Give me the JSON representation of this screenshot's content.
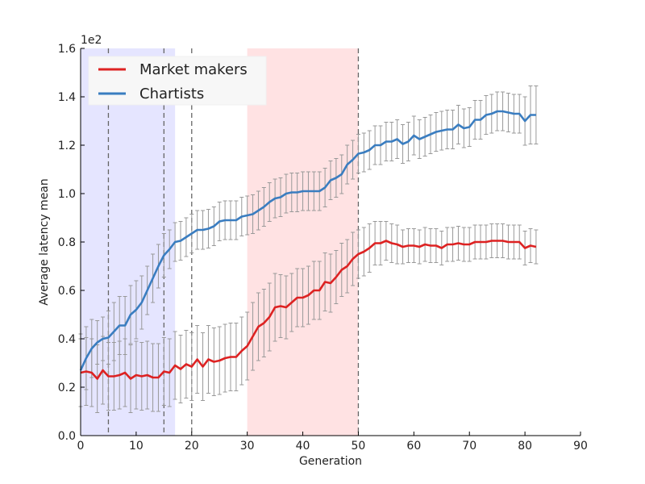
{
  "chart_data": {
    "type": "line",
    "title": "",
    "xlabel": "Generation",
    "ylabel": "Average latency mean",
    "y_scale_label": "1e2",
    "xlim": [
      0,
      90
    ],
    "ylim": [
      0.0,
      1.6
    ],
    "xticks": [
      0,
      10,
      20,
      30,
      40,
      50,
      60,
      70,
      80,
      90
    ],
    "xtick_labels": [
      "0",
      "10",
      "20",
      "30",
      "40",
      "50",
      "60",
      "70",
      "80",
      "90"
    ],
    "yticks": [
      0.0,
      0.2,
      0.4,
      0.6,
      0.8,
      1.0,
      1.2,
      1.4,
      1.6
    ],
    "ytick_labels": [
      "0.0",
      "0.2",
      "0.4",
      "0.6",
      "0.8",
      "1.0",
      "1.2",
      "1.4",
      "1.6"
    ],
    "grid": false,
    "legend_position": "top-left",
    "shaded_regions": [
      {
        "x0": 0,
        "x1": 17,
        "color": "#e5e5ff"
      },
      {
        "x0": 30,
        "x1": 50,
        "color": "#ffe2e3"
      }
    ],
    "vlines": [
      5,
      15,
      20,
      50
    ],
    "errorbar_color": "#999999",
    "series": [
      {
        "name": "Market makers",
        "color": "#dd2222",
        "x_start": 0,
        "values": [
          0.26,
          0.265,
          0.26,
          0.235,
          0.27,
          0.245,
          0.245,
          0.25,
          0.26,
          0.235,
          0.25,
          0.245,
          0.25,
          0.24,
          0.24,
          0.265,
          0.26,
          0.29,
          0.275,
          0.295,
          0.285,
          0.315,
          0.285,
          0.315,
          0.305,
          0.31,
          0.32,
          0.325,
          0.325,
          0.35,
          0.37,
          0.41,
          0.45,
          0.465,
          0.49,
          0.53,
          0.535,
          0.53,
          0.55,
          0.57,
          0.57,
          0.58,
          0.6,
          0.6,
          0.635,
          0.63,
          0.655,
          0.685,
          0.7,
          0.73,
          0.75,
          0.76,
          0.775,
          0.795,
          0.795,
          0.805,
          0.795,
          0.79,
          0.78,
          0.785,
          0.785,
          0.78,
          0.79,
          0.785,
          0.785,
          0.775,
          0.79,
          0.79,
          0.795,
          0.79,
          0.79,
          0.8,
          0.8,
          0.8,
          0.805,
          0.805,
          0.805,
          0.8,
          0.8,
          0.8,
          0.775,
          0.785,
          0.78
        ],
        "errors": [
          0.14,
          0.14,
          0.14,
          0.14,
          0.14,
          0.14,
          0.14,
          0.14,
          0.14,
          0.14,
          0.14,
          0.14,
          0.14,
          0.14,
          0.14,
          0.14,
          0.14,
          0.14,
          0.14,
          0.14,
          0.14,
          0.14,
          0.14,
          0.14,
          0.14,
          0.14,
          0.14,
          0.14,
          0.14,
          0.14,
          0.14,
          0.14,
          0.14,
          0.14,
          0.14,
          0.14,
          0.13,
          0.13,
          0.12,
          0.12,
          0.12,
          0.12,
          0.12,
          0.12,
          0.12,
          0.12,
          0.11,
          0.11,
          0.11,
          0.11,
          0.1,
          0.1,
          0.1,
          0.09,
          0.09,
          0.08,
          0.08,
          0.08,
          0.07,
          0.07,
          0.07,
          0.07,
          0.07,
          0.07,
          0.07,
          0.07,
          0.07,
          0.07,
          0.07,
          0.07,
          0.07,
          0.07,
          0.07,
          0.07,
          0.07,
          0.07,
          0.07,
          0.07,
          0.07,
          0.07,
          0.07,
          0.07,
          0.07
        ]
      },
      {
        "name": "Chartists",
        "color": "#3a7dc0",
        "x_start": 0,
        "values": [
          0.27,
          0.32,
          0.36,
          0.385,
          0.4,
          0.405,
          0.43,
          0.455,
          0.455,
          0.5,
          0.52,
          0.55,
          0.6,
          0.65,
          0.7,
          0.745,
          0.77,
          0.8,
          0.805,
          0.82,
          0.835,
          0.85,
          0.85,
          0.855,
          0.865,
          0.885,
          0.89,
          0.89,
          0.89,
          0.905,
          0.91,
          0.915,
          0.93,
          0.945,
          0.965,
          0.98,
          0.985,
          1.0,
          1.005,
          1.005,
          1.01,
          1.01,
          1.01,
          1.01,
          1.025,
          1.055,
          1.065,
          1.08,
          1.12,
          1.14,
          1.165,
          1.17,
          1.18,
          1.2,
          1.2,
          1.215,
          1.215,
          1.225,
          1.205,
          1.215,
          1.24,
          1.225,
          1.235,
          1.245,
          1.255,
          1.26,
          1.265,
          1.265,
          1.285,
          1.27,
          1.275,
          1.305,
          1.305,
          1.325,
          1.33,
          1.34,
          1.34,
          1.335,
          1.33,
          1.33,
          1.3,
          1.325,
          1.325
        ],
        "errors": [
          0.15,
          0.13,
          0.12,
          0.09,
          0.09,
          0.11,
          0.12,
          0.12,
          0.12,
          0.12,
          0.12,
          0.11,
          0.1,
          0.1,
          0.09,
          0.09,
          0.08,
          0.08,
          0.08,
          0.08,
          0.08,
          0.08,
          0.08,
          0.08,
          0.08,
          0.08,
          0.08,
          0.08,
          0.08,
          0.08,
          0.08,
          0.08,
          0.08,
          0.08,
          0.08,
          0.08,
          0.08,
          0.08,
          0.08,
          0.08,
          0.08,
          0.08,
          0.08,
          0.08,
          0.08,
          0.08,
          0.08,
          0.08,
          0.08,
          0.08,
          0.08,
          0.08,
          0.08,
          0.08,
          0.08,
          0.08,
          0.08,
          0.08,
          0.08,
          0.08,
          0.08,
          0.08,
          0.08,
          0.08,
          0.08,
          0.08,
          0.08,
          0.08,
          0.08,
          0.08,
          0.08,
          0.08,
          0.08,
          0.08,
          0.08,
          0.08,
          0.08,
          0.08,
          0.08,
          0.08,
          0.1,
          0.12,
          0.12
        ]
      }
    ]
  }
}
